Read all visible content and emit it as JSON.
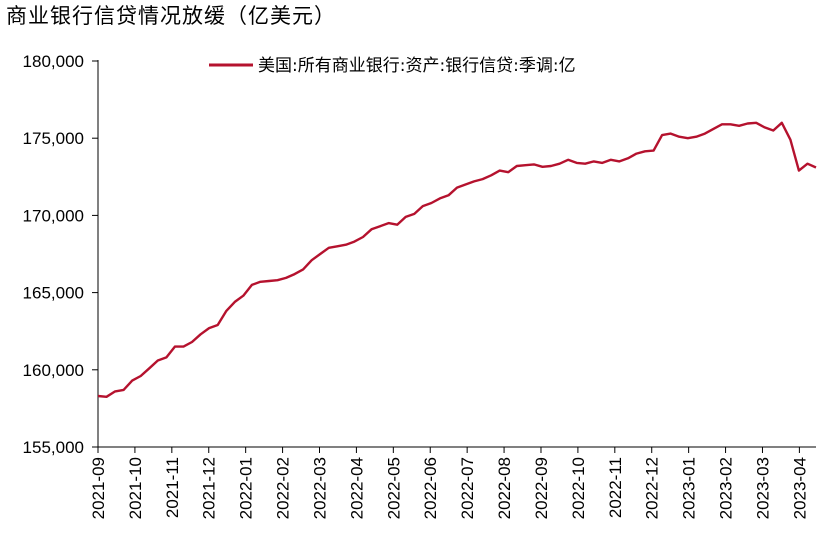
{
  "chart_data": {
    "type": "line",
    "title": "商业银行信贷情况放缓（亿美元）",
    "xlabel": "",
    "ylabel": "",
    "ylim": [
      155000,
      180000
    ],
    "y_ticks": [
      155000,
      160000,
      165000,
      170000,
      175000,
      180000
    ],
    "y_tick_labels": [
      "155,000",
      "160,000",
      "165,000",
      "170,000",
      "175,000",
      "180,000"
    ],
    "x_tick_labels": [
      "2021-09",
      "2021-10",
      "2021-11",
      "2021-12",
      "2022-01",
      "2022-02",
      "2022-03",
      "2022-04",
      "2022-05",
      "2022-06",
      "2022-07",
      "2022-08",
      "2022-09",
      "2022-10",
      "2022-11",
      "2022-12",
      "2023-01",
      "2023-02",
      "2023-03",
      "2023-04"
    ],
    "grid": false,
    "legend_position": "top",
    "series": [
      {
        "name": "美国:所有商业银行:资产:银行信贷:季调:亿",
        "color": "#b5122e",
        "x_start": "2021-09-01",
        "frequency": "weekly",
        "values": [
          158300,
          158250,
          158600,
          158700,
          159300,
          159600,
          160100,
          160600,
          160800,
          161500,
          161500,
          161800,
          162300,
          162700,
          162900,
          163800,
          164400,
          164800,
          165500,
          165700,
          165750,
          165800,
          165950,
          166200,
          166500,
          167100,
          167500,
          167900,
          168000,
          168100,
          168300,
          168600,
          169100,
          169300,
          169500,
          169400,
          169900,
          170100,
          170600,
          170800,
          171100,
          171300,
          171800,
          172000,
          172200,
          172350,
          172600,
          172900,
          172800,
          173200,
          173250,
          173300,
          173150,
          173200,
          173350,
          173600,
          173400,
          173350,
          173500,
          173400,
          173600,
          173500,
          173700,
          174000,
          174150,
          174200,
          175200,
          175300,
          175100,
          175000,
          175100,
          175300,
          175600,
          175900,
          175900,
          175800,
          175950,
          176000,
          175700,
          175500,
          176000,
          174900,
          172900,
          173350,
          173100
        ]
      }
    ]
  }
}
